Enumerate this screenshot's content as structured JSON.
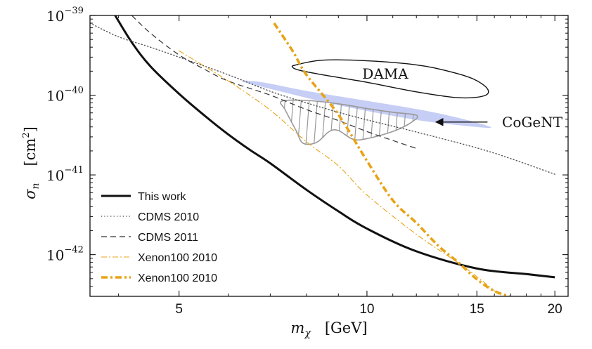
{
  "chart_data": {
    "type": "line",
    "x_scale": "log",
    "y_scale": "log",
    "xlabel": "m_χ [GeV]",
    "ylabel": "σ_n [cm²]",
    "xlim": [
      3.6,
      21
    ],
    "ylim": [
      3e-43,
      1e-39
    ],
    "x_ticks": [
      5,
      10,
      15,
      20
    ],
    "x_tick_labels": [
      "5",
      "10",
      "15",
      "20"
    ],
    "y_ticks": [
      1e-42,
      1e-41,
      1e-40,
      1e-39
    ],
    "y_tick_labels": [
      {
        "base": "10",
        "exp": "−42"
      },
      {
        "base": "10",
        "exp": "−41"
      },
      {
        "base": "10",
        "exp": "−40"
      },
      {
        "base": "10",
        "exp": "−39"
      }
    ],
    "grid": false,
    "legend_position": "bottom-left",
    "series": [
      {
        "name": "This work",
        "style": "solid",
        "color": "#111111",
        "points": [
          [
            3.95,
            1e-39
          ],
          [
            4.2,
            4.6e-40
          ],
          [
            4.5,
            2.3e-40
          ],
          [
            5.0,
            1.04e-40
          ],
          [
            5.5,
            5.5e-41
          ],
          [
            6.0,
            3.2e-41
          ],
          [
            6.5,
            2.05e-41
          ],
          [
            7.0,
            1.4e-41
          ],
          [
            8.0,
            6.5e-42
          ],
          [
            9.0,
            3.5e-42
          ],
          [
            10.0,
            2.12e-42
          ],
          [
            12.0,
            1.1e-42
          ],
          [
            15.0,
            6.7e-43
          ],
          [
            18.0,
            5.7e-43
          ],
          [
            20.0,
            5.2e-43
          ]
        ]
      },
      {
        "name": "CDMS 2010",
        "style": "dotted",
        "color": "#555555",
        "points": [
          [
            3.6,
            8e-40
          ],
          [
            4.0,
            5.4e-40
          ],
          [
            4.5,
            4e-40
          ],
          [
            5.0,
            3e-40
          ],
          [
            6.0,
            1.8e-40
          ],
          [
            7.0,
            1.12e-40
          ],
          [
            8.0,
            8e-41
          ],
          [
            9.0,
            6.1e-41
          ],
          [
            10.0,
            4.9e-41
          ],
          [
            12.0,
            3.45e-41
          ],
          [
            15.0,
            2.18e-41
          ],
          [
            17.0,
            1.6e-41
          ],
          [
            20.0,
            1.02e-41
          ]
        ]
      },
      {
        "name": "CDMS 2011",
        "style": "dashed",
        "color": "#333333",
        "points": [
          [
            4.2,
            1e-39
          ],
          [
            4.5,
            6e-40
          ],
          [
            5.0,
            3.2e-40
          ],
          [
            5.5,
            2.1e-40
          ],
          [
            6.0,
            1.5e-40
          ],
          [
            7.0,
            1e-40
          ],
          [
            8.0,
            6.6e-41
          ],
          [
            9.0,
            4.8e-41
          ],
          [
            10.0,
            3.5e-41
          ],
          [
            11.0,
            2.7e-41
          ],
          [
            12.0,
            2.15e-41
          ]
        ]
      },
      {
        "name": "Xenon100 2010",
        "style": "dashdot-thin",
        "color": "#e8a317",
        "points": [
          [
            5.0,
            3.6e-40
          ],
          [
            6.0,
            1.5e-40
          ],
          [
            7.0,
            6.5e-41
          ],
          [
            8.0,
            2.6e-41
          ],
          [
            9.0,
            1.3e-41
          ],
          [
            10.0,
            5.6e-42
          ],
          [
            12.0,
            1.8e-42
          ],
          [
            14.0,
            7.9e-43
          ],
          [
            15.0,
            5.3e-43
          ],
          [
            16.4,
            3e-43
          ]
        ]
      },
      {
        "name": "Xenon100 2010",
        "style": "dashdot-thick",
        "color": "#e8a317",
        "points": [
          [
            7.1,
            8e-40
          ],
          [
            7.6,
            3.6e-40
          ],
          [
            8.0,
            1.8e-40
          ],
          [
            9.0,
            5.7e-41
          ],
          [
            10.0,
            1.5e-41
          ],
          [
            11.0,
            4.8e-42
          ],
          [
            12.0,
            2.5e-42
          ],
          [
            13.0,
            1.3e-42
          ],
          [
            14.0,
            8e-43
          ],
          [
            15.0,
            4.9e-43
          ],
          [
            16.0,
            3.5e-43
          ],
          [
            16.9,
            3e-43
          ]
        ]
      }
    ],
    "regions": [
      {
        "label": "DAMA",
        "style": "outline",
        "color": "#111111",
        "points": [
          [
            7.7,
            2.4e-40
          ],
          [
            8.5,
            2.75e-40
          ],
          [
            10,
            2.7e-40
          ],
          [
            12,
            2.4e-40
          ],
          [
            13.5,
            2e-40
          ],
          [
            14.8,
            1.6e-40
          ],
          [
            15.6,
            1.2e-40
          ],
          [
            15.4,
            9.8e-41
          ],
          [
            14,
            9.3e-41
          ],
          [
            12,
            1.1e-40
          ],
          [
            10,
            1.45e-40
          ],
          [
            8.5,
            1.8e-40
          ],
          [
            7.8,
            2.05e-40
          ],
          [
            7.6,
            2.25e-40
          ]
        ]
      },
      {
        "label": "CoGeNT",
        "style": "filled",
        "color": "#c6cef5",
        "points": [
          [
            6.3,
            1.5e-40
          ],
          [
            7,
            1.2e-40
          ],
          [
            9,
            7.5e-41
          ],
          [
            12,
            4.9e-41
          ],
          [
            14.5,
            4.1e-41
          ],
          [
            15.8,
            3.95e-41
          ],
          [
            14,
            5.2e-41
          ],
          [
            12,
            6.7e-41
          ],
          [
            10,
            8.5e-41
          ],
          [
            8,
            1.13e-40
          ],
          [
            6.8,
            1.45e-40
          ]
        ]
      },
      {
        "label": "",
        "style": "hatched",
        "color": "#999999",
        "points": [
          [
            7.3,
            8.4e-41
          ],
          [
            8.0,
            8.6e-41
          ],
          [
            9.0,
            7.8e-41
          ],
          [
            10.0,
            6.8e-41
          ],
          [
            11.0,
            6.1e-41
          ],
          [
            12.0,
            5.6e-41
          ],
          [
            11.8,
            4.6e-41
          ],
          [
            11.0,
            3.5e-41
          ],
          [
            10.0,
            2.85e-41
          ],
          [
            9.5,
            2.8e-41
          ],
          [
            9.0,
            3.6e-41
          ],
          [
            8.7,
            3.5e-41
          ],
          [
            8.3,
            2.55e-41
          ],
          [
            7.9,
            2.5e-41
          ],
          [
            7.7,
            3.6e-41
          ],
          [
            7.4,
            6.5e-41
          ]
        ]
      }
    ],
    "annotations": [
      {
        "text": "DAMA",
        "x": 10.7,
        "y": 1.85e-40
      },
      {
        "text": "CoGeNT",
        "x": 18.4,
        "y": 4.6e-41,
        "arrow_to": [
          12.9,
          4.6e-41
        ],
        "arrow_from": [
          15.6,
          4.6e-41
        ]
      }
    ],
    "colors": {
      "axes": "#111111",
      "cogent_fill": "#c6cef5",
      "xenon": "#e8a317"
    }
  }
}
